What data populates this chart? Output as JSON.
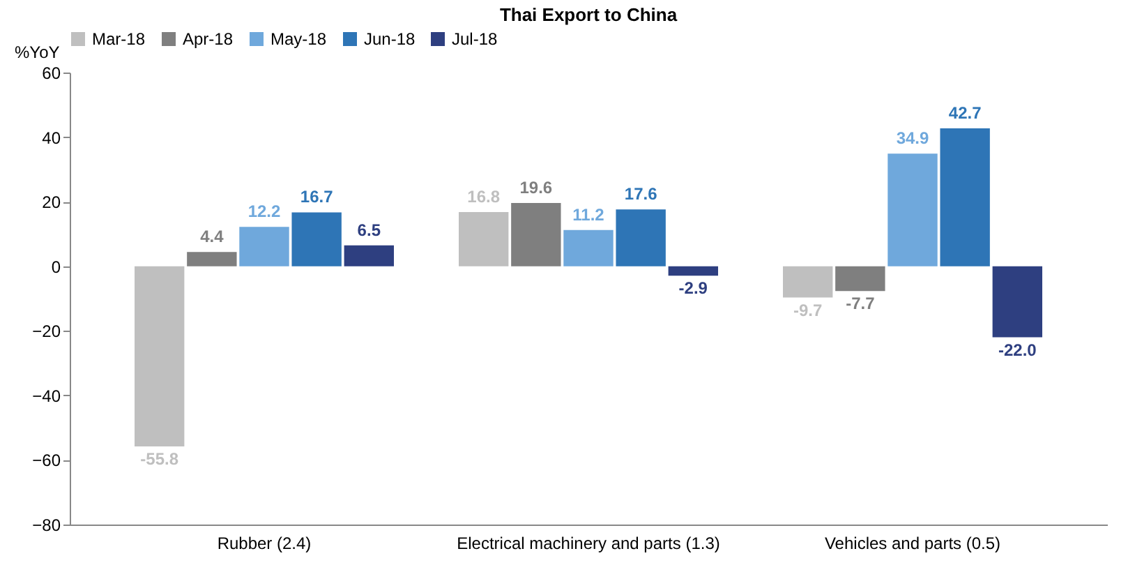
{
  "chart_data": {
    "type": "bar",
    "title": "Thai Export to China",
    "ylabel": "%YoY",
    "categories": [
      "Rubber (2.4)",
      "Electrical machinery and parts (1.3)",
      "Vehicles and parts (0.5)"
    ],
    "series": [
      {
        "name": "Mar-18",
        "color": "#bfbfbf",
        "values": [
          -55.8,
          16.8,
          -9.7
        ],
        "value_labels": [
          "-55.8",
          "16.8",
          "-9.7"
        ]
      },
      {
        "name": "Apr-18",
        "color": "#7f7f7f",
        "values": [
          4.4,
          19.6,
          -7.7
        ],
        "value_labels": [
          "4.4",
          "19.6",
          "-7.7"
        ]
      },
      {
        "name": "May-18",
        "color": "#6fa8dc",
        "values": [
          12.2,
          11.2,
          34.9
        ],
        "value_labels": [
          "12.2",
          "11.2",
          "34.9"
        ]
      },
      {
        "name": "Jun-18",
        "color": "#2e75b6",
        "values": [
          16.7,
          17.6,
          42.7
        ],
        "value_labels": [
          "16.7",
          "17.6",
          "42.7"
        ]
      },
      {
        "name": "Jul-18",
        "color": "#2e3f80",
        "values": [
          6.5,
          -2.9,
          -22.0
        ],
        "value_labels": [
          "6.5",
          "-2.9",
          "-22.0"
        ]
      }
    ],
    "ylim": [
      -80,
      60
    ],
    "yticks": [
      -80,
      -60,
      -40,
      -20,
      0,
      20,
      40,
      60
    ],
    "grid": false,
    "legend": "top"
  }
}
